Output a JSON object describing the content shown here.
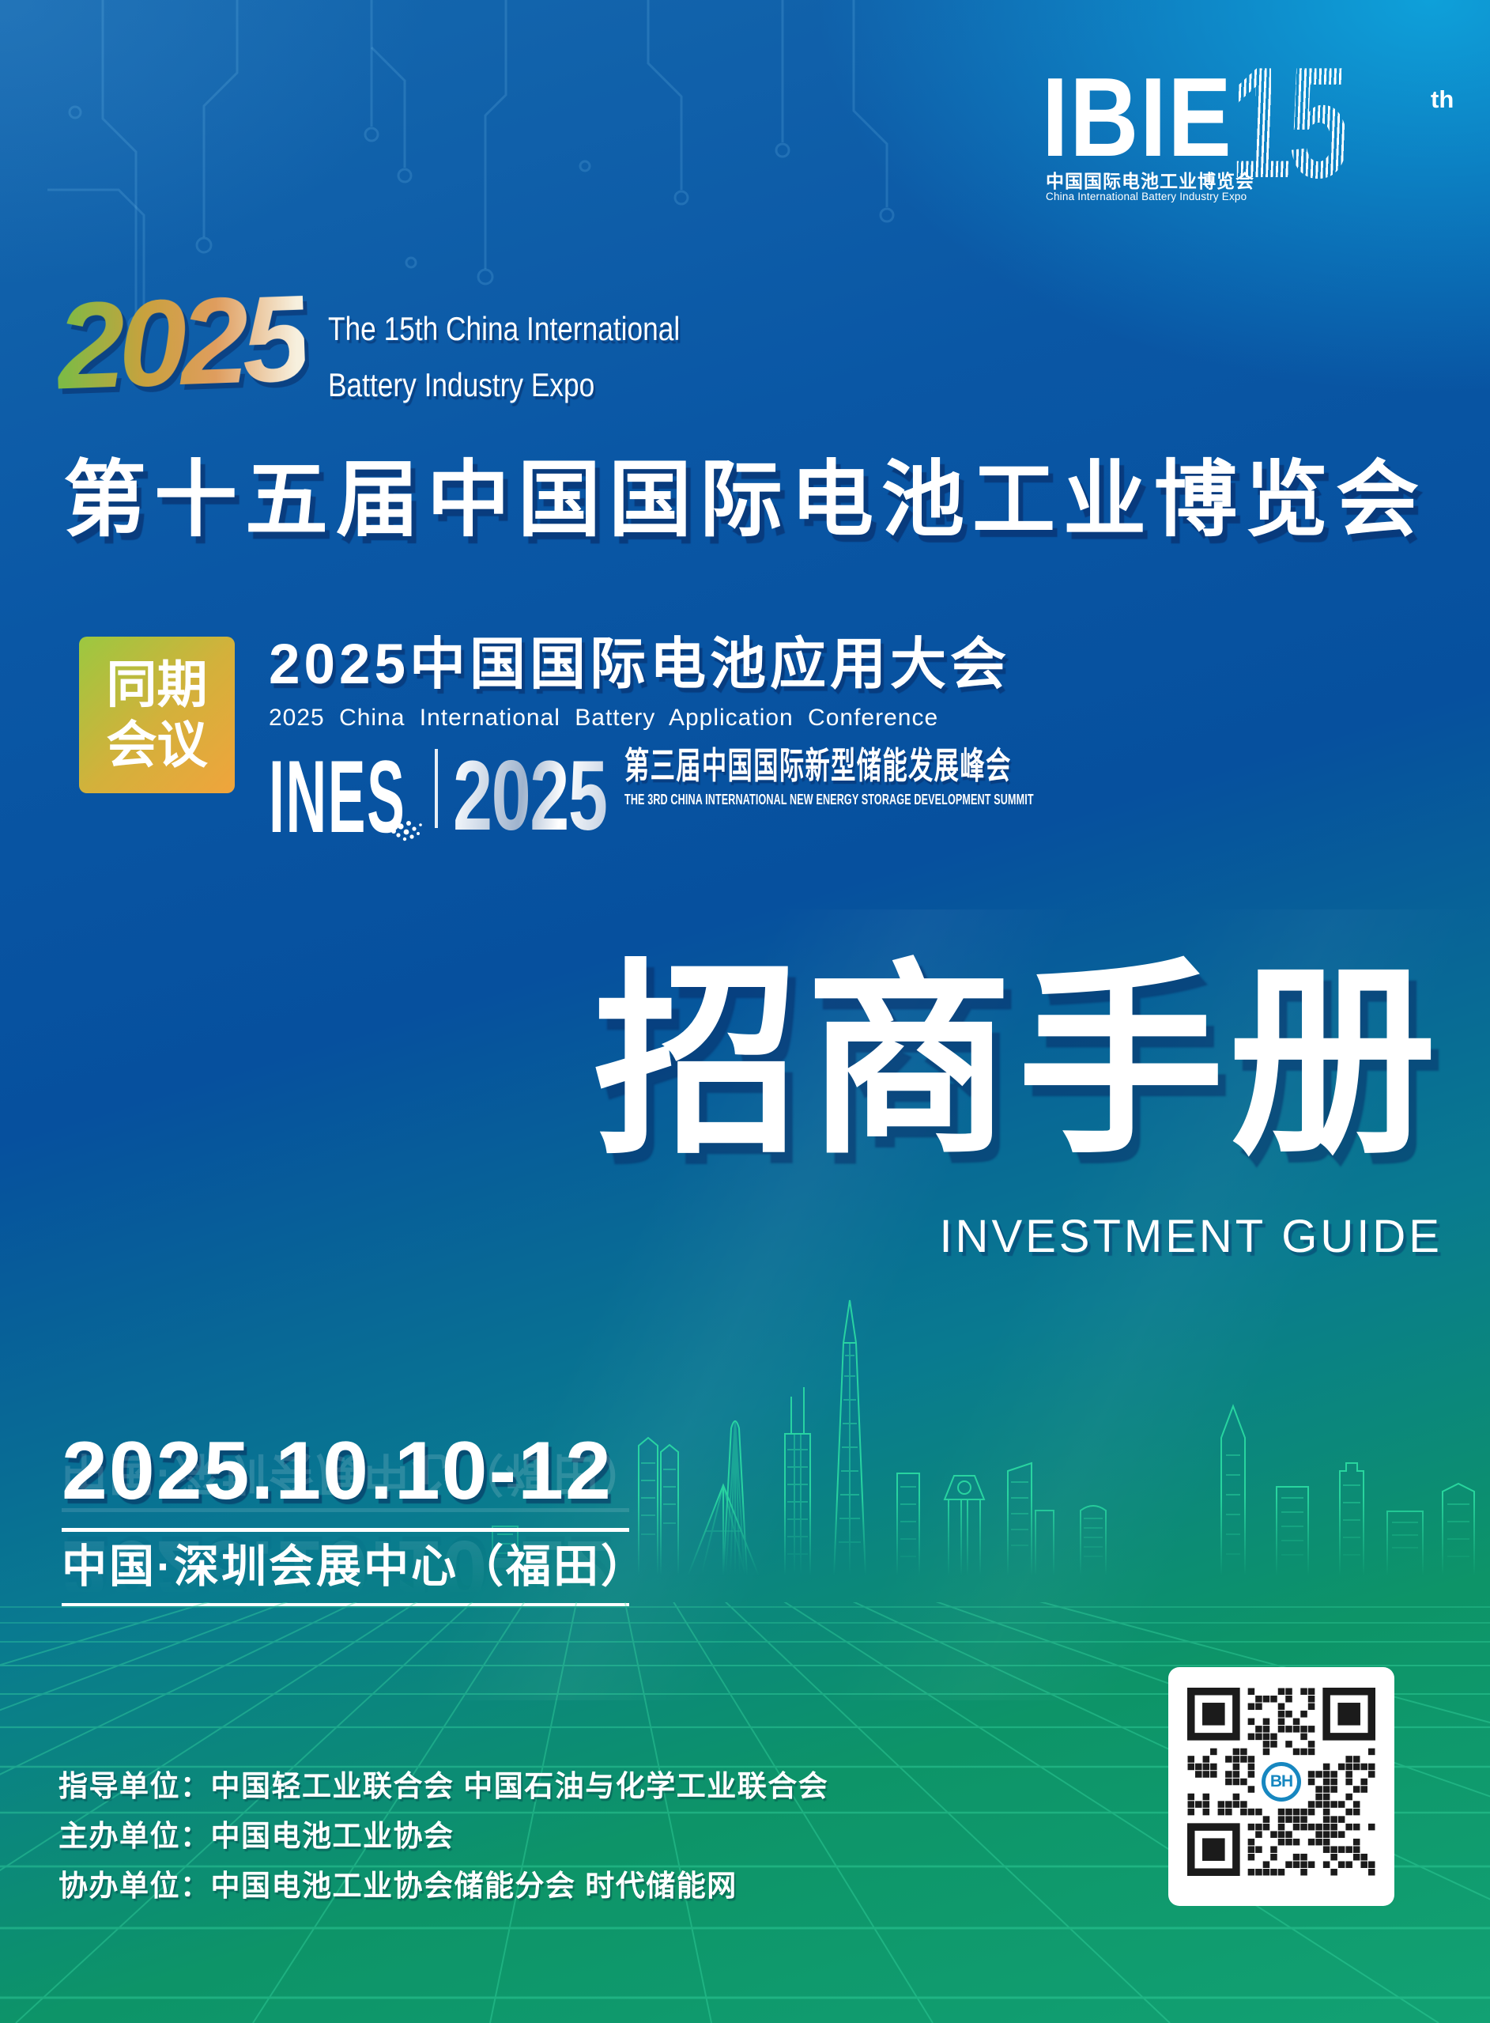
{
  "brand": {
    "name": "IBIE",
    "number": "15",
    "suffix": "th",
    "caption_cn": "中国国际电池工业博览会",
    "caption_en": "China International Battery Industry Expo"
  },
  "hero": {
    "year": "2025",
    "subtitle_line1": "The 15th China International",
    "subtitle_line2": "Battery Industry Expo",
    "title_cn": "第十五届中国国际电池工业博览会"
  },
  "concurrent": {
    "badge_top": "同期",
    "badge_bottom": "会议",
    "conference1_cn": "2025中国国际电池应用大会",
    "conference1_en": "2025 China International Battery Application Conference",
    "ines_name": "INES",
    "ines_year": "2025",
    "conference2_cn": "第三届中国国际新型储能发展峰会",
    "conference2_en": "THE 3RD CHINA INTERNATIONAL NEW ENERGY STORAGE DEVELOPMENT SUMMIT"
  },
  "main_title": {
    "cn": "招商手册",
    "en": "INVESTMENT GUIDE"
  },
  "event": {
    "date": "2025.10.10-12",
    "venue": "中国·深圳会展中心（福田）"
  },
  "organizers": [
    {
      "label": "指导单位：",
      "value": "中国轻工业联合会 中国石油与化学工业联合会"
    },
    {
      "label": "主办单位：",
      "value": "中国电池工业协会"
    },
    {
      "label": "协办单位：",
      "value": "中国电池工业协会储能分会 时代储能网"
    }
  ],
  "qr": {
    "center_logo": "BH"
  },
  "colors": {
    "bg_top_right_cyan": "#0EACD2",
    "bg_deep_blue": "#06509E",
    "bg_bottom_green": "#12A173",
    "badge_green": "#9BC840",
    "badge_orange": "#F0A43C",
    "year_gradient": [
      "#7FBA45",
      "#C9A13E",
      "#DF9D5E",
      "#F7F0DE"
    ],
    "skyline_green": "#2FE3A6",
    "qr_logo_blue": "#1787C0"
  }
}
